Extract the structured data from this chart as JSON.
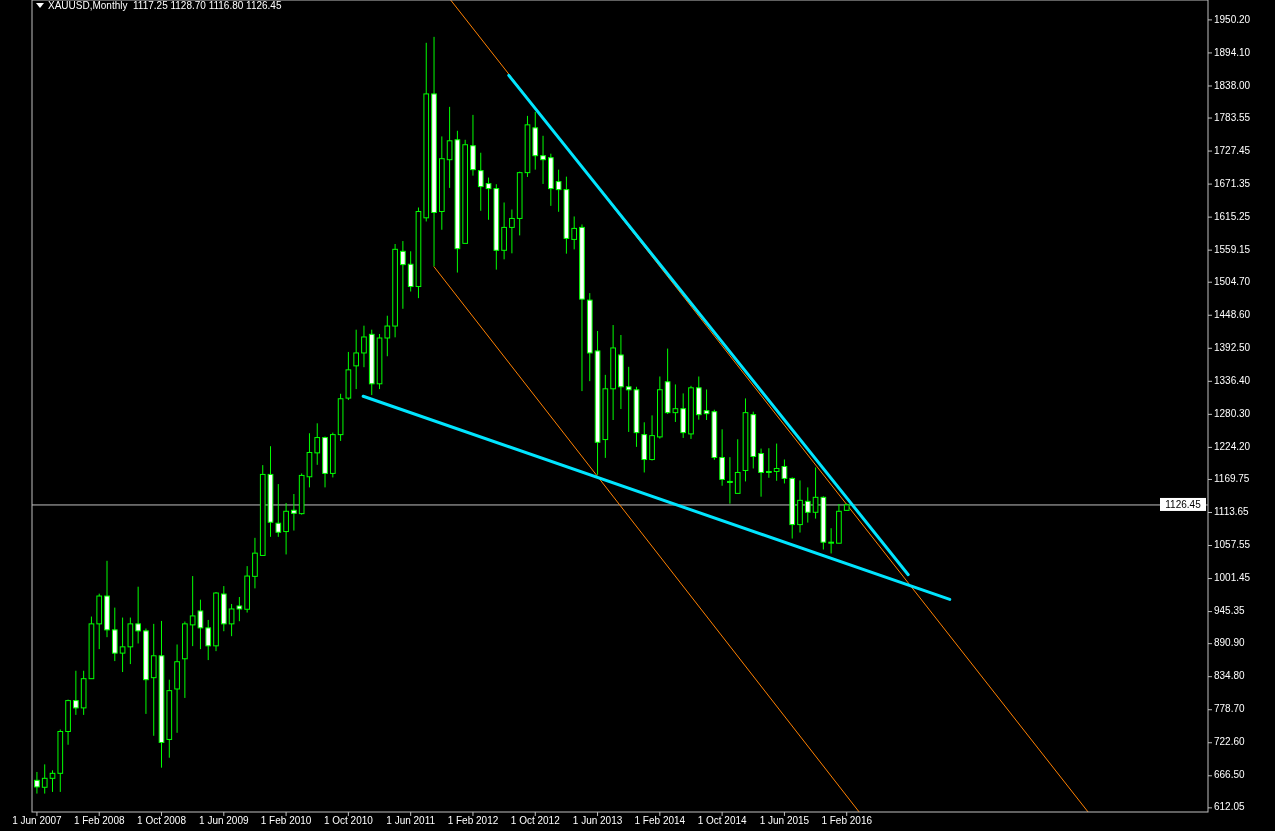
{
  "chart_data": {
    "type": "candlestick",
    "title": "XAUUSD,Monthly  1117.25 1128.70 1116.80 1126.45",
    "color": "#00ff00",
    "x": [
      "2007-06",
      "2007-07",
      "2007-08",
      "2007-09",
      "2007-10",
      "2007-11",
      "2007-12",
      "2008-01",
      "2008-02",
      "2008-03",
      "2008-04",
      "2008-05",
      "2008-06",
      "2008-07",
      "2008-08",
      "2008-09",
      "2008-10",
      "2008-11",
      "2008-12",
      "2009-01",
      "2009-02",
      "2009-03",
      "2009-04",
      "2009-05",
      "2009-06",
      "2009-07",
      "2009-08",
      "2009-09",
      "2009-10",
      "2009-11",
      "2009-12",
      "2010-01",
      "2010-02",
      "2010-03",
      "2010-04",
      "2010-05",
      "2010-06",
      "2010-07",
      "2010-08",
      "2010-09",
      "2010-10",
      "2010-11",
      "2010-12",
      "2011-01",
      "2011-02",
      "2011-03",
      "2011-04",
      "2011-05",
      "2011-06",
      "2011-07",
      "2011-08",
      "2011-09",
      "2011-10",
      "2011-11",
      "2011-12",
      "2012-01",
      "2012-02",
      "2012-03",
      "2012-04",
      "2012-05",
      "2012-06",
      "2012-07",
      "2012-08",
      "2012-09",
      "2012-10",
      "2012-11",
      "2012-12",
      "2013-01",
      "2013-02",
      "2013-03",
      "2013-04",
      "2013-05",
      "2013-06",
      "2013-07",
      "2013-08",
      "2013-09",
      "2013-10",
      "2013-11",
      "2013-12",
      "2014-01",
      "2014-02",
      "2014-03",
      "2014-04",
      "2014-05",
      "2014-06",
      "2014-07",
      "2014-08",
      "2014-09",
      "2014-10",
      "2014-11",
      "2014-12",
      "2015-01",
      "2015-02",
      "2015-03",
      "2015-04",
      "2015-05",
      "2015-06",
      "2015-07",
      "2015-08",
      "2015-09",
      "2015-10",
      "2015-11",
      "2015-12",
      "2016-01",
      "2016-02"
    ],
    "ohlc": [
      [
        658.8,
        673,
        636.3,
        647.6
      ],
      [
        647,
        685.9,
        636.3,
        662.2
      ],
      [
        662.2,
        675.8,
        639.1,
        670.7
      ],
      [
        670.7,
        745.1,
        639.1,
        741.7
      ],
      [
        741.7,
        795.9,
        719.2,
        794.2
      ],
      [
        794.2,
        844.9,
        769.9,
        781.8
      ],
      [
        781.8,
        844.9,
        769.9,
        831.4
      ],
      [
        831.4,
        936.9,
        831.4,
        924.5
      ],
      [
        924.5,
        975.8,
        881.6,
        971.8
      ],
      [
        971.8,
        1031.6,
        901.9,
        914.3
      ],
      [
        914.3,
        952.1,
        861.3,
        874.8
      ],
      [
        874.8,
        935.2,
        842.7,
        885.5
      ],
      [
        885.5,
        935.2,
        856.2,
        924.5
      ],
      [
        924.5,
        987.6,
        891.2,
        912.6
      ],
      [
        912.6,
        916.6,
        771.6,
        829.7
      ],
      [
        833.1,
        924.5,
        734.4,
        870.3
      ],
      [
        870.3,
        929.5,
        680.3,
        723.1
      ],
      [
        728.2,
        829.7,
        697.2,
        811.1
      ],
      [
        813.9,
        889.5,
        739.5,
        860.2
      ],
      [
        865.2,
        928.4,
        798.7,
        924.5
      ],
      [
        922.8,
        1005.7,
        886.7,
        938
      ],
      [
        946.4,
        965.6,
        881.6,
        917.7
      ],
      [
        917.7,
        931.2,
        863,
        887.2
      ],
      [
        887.2,
        978.6,
        878.2,
        976.9
      ],
      [
        975.2,
        988.7,
        912,
        924.5
      ],
      [
        924.5,
        958.3,
        903.6,
        949.8
      ],
      [
        954.9,
        970.1,
        929,
        949.8
      ],
      [
        949.3,
        1022.6,
        943.7,
        1005.7
      ],
      [
        1005.2,
        1070.6,
        984.8,
        1044.6
      ],
      [
        1040.7,
        1194.1,
        1040.7,
        1178.3
      ],
      [
        1178.3,
        1226.2,
        1072.3,
        1097.1
      ],
      [
        1095.4,
        1161.9,
        1072.3,
        1080.1
      ],
      [
        1081.3,
        1129.8,
        1042.4,
        1115.7
      ],
      [
        1117.4,
        1145,
        1083,
        1112.3
      ],
      [
        1111.7,
        1179.9,
        1110,
        1176.6
      ],
      [
        1174.3,
        1248.2,
        1156.3,
        1215.5
      ],
      [
        1214.9,
        1265.1,
        1194.6,
        1240.9
      ],
      [
        1240.9,
        1242.6,
        1156.3,
        1180
      ],
      [
        1180,
        1249.3,
        1173.2,
        1245.9
      ],
      [
        1245.9,
        1315.3,
        1235.2,
        1306.8
      ],
      [
        1307.9,
        1386.3,
        1304.6,
        1355.9
      ],
      [
        1362.7,
        1424.1,
        1323.2,
        1384.6
      ],
      [
        1384.6,
        1430.9,
        1360.4,
        1411.7
      ],
      [
        1416.2,
        1424.1,
        1313,
        1332.2
      ],
      [
        1332.2,
        1416.8,
        1323.2,
        1410
      ],
      [
        1410,
        1447.8,
        1379,
        1430.3
      ],
      [
        1430.3,
        1569.6,
        1411.1,
        1560.6
      ],
      [
        1557.2,
        1574.6,
        1459.6,
        1534.6
      ],
      [
        1535.2,
        1557.2,
        1488.9,
        1497.4
      ],
      [
        1497.4,
        1631.6,
        1477.7,
        1624.8
      ],
      [
        1614.1,
        1911.3,
        1607.9,
        1824.5
      ],
      [
        1824.5,
        1921.4,
        1531.8,
        1623.1
      ],
      [
        1624.8,
        1752.3,
        1593.8,
        1714.5
      ],
      [
        1712.8,
        1802.5,
        1664.9,
        1744.9
      ],
      [
        1746.6,
        1761.9,
        1521.1,
        1561.7
      ],
      [
        1570.7,
        1746.6,
        1570.7,
        1738.2
      ],
      [
        1736.5,
        1788.9,
        1685.7,
        1695.9
      ],
      [
        1694.2,
        1724.6,
        1626,
        1667.1
      ],
      [
        1672.2,
        1682.4,
        1610.7,
        1663.7
      ],
      [
        1663.7,
        1671.1,
        1526.1,
        1558.9
      ],
      [
        1558.9,
        1640.1,
        1543.6,
        1597.8
      ],
      [
        1597.8,
        1628.2,
        1553.8,
        1613
      ],
      [
        1613,
        1692.5,
        1584.2,
        1690.8
      ],
      [
        1690.8,
        1787.2,
        1683.5,
        1772
      ],
      [
        1766.9,
        1794,
        1695.9,
        1719.6
      ],
      [
        1719.6,
        1753.4,
        1671.6,
        1712.8
      ],
      [
        1716.2,
        1723,
        1634.4,
        1663.7
      ],
      [
        1675.6,
        1695.9,
        1624.3,
        1662
      ],
      [
        1662,
        1684,
        1553.2,
        1579.1
      ],
      [
        1577.4,
        1616.4,
        1560.5,
        1596.1
      ],
      [
        1597.8,
        1602.8,
        1319.8,
        1476
      ],
      [
        1474.3,
        1486.2,
        1336.7,
        1384.6
      ],
      [
        1388,
        1421.9,
        1177.7,
        1232.9
      ],
      [
        1237.5,
        1347.4,
        1206.4,
        1323.7
      ],
      [
        1323.7,
        1432,
        1270.7,
        1393.1
      ],
      [
        1381.2,
        1415.1,
        1289.3,
        1327.1
      ],
      [
        1327.1,
        1361,
        1250.4,
        1322
      ],
      [
        1322,
        1327.1,
        1225.1,
        1249.3
      ],
      [
        1245.9,
        1266.8,
        1181.6,
        1203.6
      ],
      [
        1203.6,
        1278.6,
        1201.9,
        1244.2
      ],
      [
        1242,
        1344.6,
        1239.2,
        1322.1
      ],
      [
        1335.6,
        1392,
        1280.9,
        1283.2
      ],
      [
        1283.2,
        1331.1,
        1267.4,
        1289.9
      ],
      [
        1289.9,
        1315.9,
        1240.3,
        1249.3
      ],
      [
        1247.1,
        1328.8,
        1238.6,
        1325.4
      ],
      [
        1325.4,
        1344.6,
        1271.3,
        1279.8
      ],
      [
        1286.5,
        1322.6,
        1270.7,
        1281.5
      ],
      [
        1284.8,
        1288.2,
        1203.1,
        1207
      ],
      [
        1207,
        1254.9,
        1159.1,
        1169.8
      ],
      [
        1166.4,
        1207.6,
        1128.6,
        1164.7
      ],
      [
        1146.1,
        1238,
        1146.1,
        1181.6
      ],
      [
        1185,
        1307.4,
        1166.4,
        1283.2
      ],
      [
        1279.8,
        1284.8,
        1188.4,
        1208.7
      ],
      [
        1213.8,
        1222.2,
        1140.5,
        1181.6
      ],
      [
        1183.3,
        1222.8,
        1172.6,
        1181.6
      ],
      [
        1183.3,
        1230.7,
        1167.5,
        1188.4
      ],
      [
        1191.8,
        1203.6,
        1163,
        1171.5
      ],
      [
        1171.5,
        1173.2,
        1069.4,
        1093.1
      ],
      [
        1093.1,
        1168.1,
        1079.6,
        1134.3
      ],
      [
        1132.6,
        1156.3,
        1096.5,
        1114
      ],
      [
        1114,
        1190.1,
        1103.3,
        1139.4
      ],
      [
        1139.4,
        1141.1,
        1050.8,
        1063.2
      ],
      [
        1061.5,
        1086.9,
        1044.1,
        1063.2
      ],
      [
        1061.5,
        1128.1,
        1061.5,
        1115.7
      ],
      [
        1117.25,
        1128.7,
        1116.8,
        1126.45
      ]
    ],
    "series": [
      {
        "type": "line",
        "color": "#ff8000",
        "x": [
          "2011-11-05",
          "2018-09-01"
        ],
        "values": [
          1984,
          605
        ]
      },
      {
        "type": "line",
        "color": "#ff8000",
        "x": [
          "2011-09-01",
          "2016-03-19"
        ],
        "values": [
          1531,
          605
        ]
      },
      {
        "type": "line",
        "color": "#00e5ff",
        "x": [
          "2012-06-19",
          "2016-09-28"
        ],
        "values": [
          1856,
          1008
        ]
      },
      {
        "type": "line",
        "color": "#00e5ff",
        "x": [
          "2010-11-28",
          "2017-03-08"
        ],
        "values": [
          1311,
          966
        ]
      }
    ],
    "ref_lines": [
      {
        "axis": "y",
        "value": 1126.45,
        "label": "1126.45",
        "color": "#c0c0c0"
      }
    ],
    "xlim": [
      "2007-05-12",
      "2019-12-13"
    ],
    "xticks": [
      {
        "value": "2007-06",
        "label": "1 Jun 2007"
      },
      {
        "value": "2008-02",
        "label": "1 Feb 2008"
      },
      {
        "value": "2008-10",
        "label": "1 Oct 2008"
      },
      {
        "value": "2009-06",
        "label": "1 Jun 2009"
      },
      {
        "value": "2010-02",
        "label": "1 Feb 2010"
      },
      {
        "value": "2010-10",
        "label": "1 Oct 2010"
      },
      {
        "value": "2011-06",
        "label": "1 Jun 2011"
      },
      {
        "value": "2012-02",
        "label": "1 Feb 2012"
      },
      {
        "value": "2012-10",
        "label": "1 Oct 2012"
      },
      {
        "value": "2013-06",
        "label": "1 Jun 2013"
      },
      {
        "value": "2014-02",
        "label": "1 Feb 2014"
      },
      {
        "value": "2014-10",
        "label": "1 Oct 2014"
      },
      {
        "value": "2015-06",
        "label": "1 Jun 2015"
      },
      {
        "value": "2016-02",
        "label": "1 Feb 2016"
      }
    ],
    "ylim": [
      605,
      1984
    ],
    "yticks": [
      612.05,
      {
        "value": 666.5,
        "label": "666.50"
      },
      {
        "value": 722.6,
        "label": "722.60"
      },
      {
        "value": 778.7,
        "label": "778.70"
      },
      {
        "value": 834.8,
        "label": "834.80"
      },
      {
        "value": 890.9,
        "label": "890.90"
      },
      945.35,
      1001.45,
      1057.55,
      1113.65,
      1169.75,
      {
        "value": 1224.2,
        "label": "1224.20"
      },
      {
        "value": 1280.3,
        "label": "1280.30"
      },
      {
        "value": 1336.4,
        "label": "1336.40"
      },
      {
        "value": 1392.5,
        "label": "1392.50"
      },
      {
        "value": 1448.6,
        "label": "1448.60"
      },
      {
        "value": 1504.7,
        "label": "1504.70"
      },
      1559.15,
      1615.25,
      1671.35,
      1727.45,
      1783.55,
      {
        "value": 1838,
        "label": "1838.00"
      },
      {
        "value": 1894.1,
        "label": "1894.10"
      },
      {
        "value": 1950.2,
        "label": "1950.20"
      }
    ],
    "grid": false
  }
}
